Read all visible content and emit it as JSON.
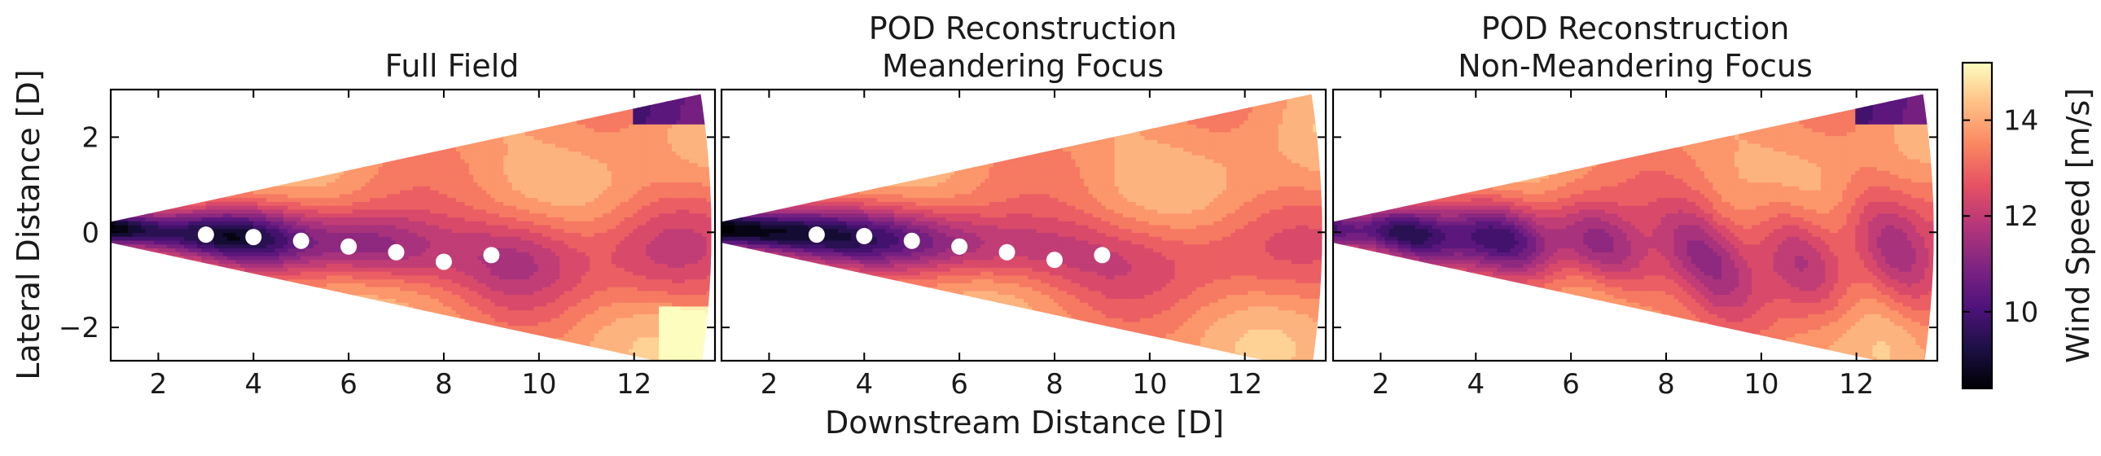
{
  "chart_data": {
    "type": "heatmap",
    "xlabel": "Downstream Distance [D]",
    "ylabel": "Lateral Distance [D]",
    "xlim": [
      1.0,
      13.7
    ],
    "ylim": [
      -2.7,
      3.0
    ],
    "x_ticks": [
      2,
      4,
      6,
      8,
      10,
      12
    ],
    "y_ticks": [
      -2,
      0,
      2
    ],
    "colorbar": {
      "label": "Wind Speed [m/s]",
      "range": [
        8.4,
        15.2
      ],
      "ticks": [
        10,
        12,
        14
      ],
      "colormap": "magma"
    },
    "panels": [
      {
        "title": [
          "Full Field"
        ],
        "wake_centers": {
          "x": [
            3,
            4,
            5,
            6,
            7,
            8,
            9
          ],
          "y": [
            -0.05,
            -0.1,
            -0.18,
            -0.3,
            -0.42,
            -0.62,
            -0.48
          ]
        }
      },
      {
        "title": [
          "POD Reconstruction",
          "Meandering Focus"
        ],
        "wake_centers": {
          "x": [
            3,
            4,
            5,
            6,
            7,
            8,
            9
          ],
          "y": [
            -0.05,
            -0.08,
            -0.18,
            -0.3,
            -0.42,
            -0.58,
            -0.48
          ]
        }
      },
      {
        "title": [
          "POD Reconstruction",
          "Non-Meandering Focus"
        ],
        "wake_centers": null
      }
    ]
  }
}
